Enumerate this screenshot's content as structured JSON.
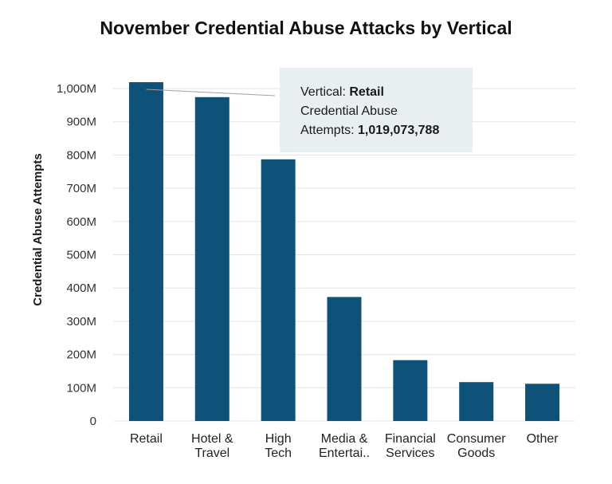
{
  "chart_data": {
    "type": "bar",
    "title": "November Credential Abuse Attacks by Vertical",
    "xlabel": "",
    "ylabel": "Credential Abuse Attempts",
    "ylim": [
      0,
      1000000000
    ],
    "yticks": [
      {
        "value": 0,
        "label": "0"
      },
      {
        "value": 100000000,
        "label": "100M"
      },
      {
        "value": 200000000,
        "label": "200M"
      },
      {
        "value": 300000000,
        "label": "300M"
      },
      {
        "value": 400000000,
        "label": "400M"
      },
      {
        "value": 500000000,
        "label": "500M"
      },
      {
        "value": 600000000,
        "label": "600M"
      },
      {
        "value": 700000000,
        "label": "700M"
      },
      {
        "value": 800000000,
        "label": "800M"
      },
      {
        "value": 900000000,
        "label": "900M"
      },
      {
        "value": 1000000000,
        "label": "1,000M"
      }
    ],
    "categories": [
      [
        "Retail"
      ],
      [
        "Hotel &",
        "Travel"
      ],
      [
        "High",
        "Tech"
      ],
      [
        "Media &",
        "Entertai.."
      ],
      [
        "Financial",
        "Services"
      ],
      [
        "Consumer",
        "Goods"
      ],
      [
        "Other"
      ]
    ],
    "values": [
      1019073788,
      974000000,
      787000000,
      373000000,
      183000000,
      117000000,
      112000000
    ],
    "grid": true,
    "color": "#0f5279",
    "tooltip": {
      "vertical_label": "Vertical:",
      "vertical_value": "Retail",
      "metric_line1": "Credential Abuse",
      "metric_line2": "Attempts:",
      "metric_value": "1,019,073,788"
    }
  }
}
